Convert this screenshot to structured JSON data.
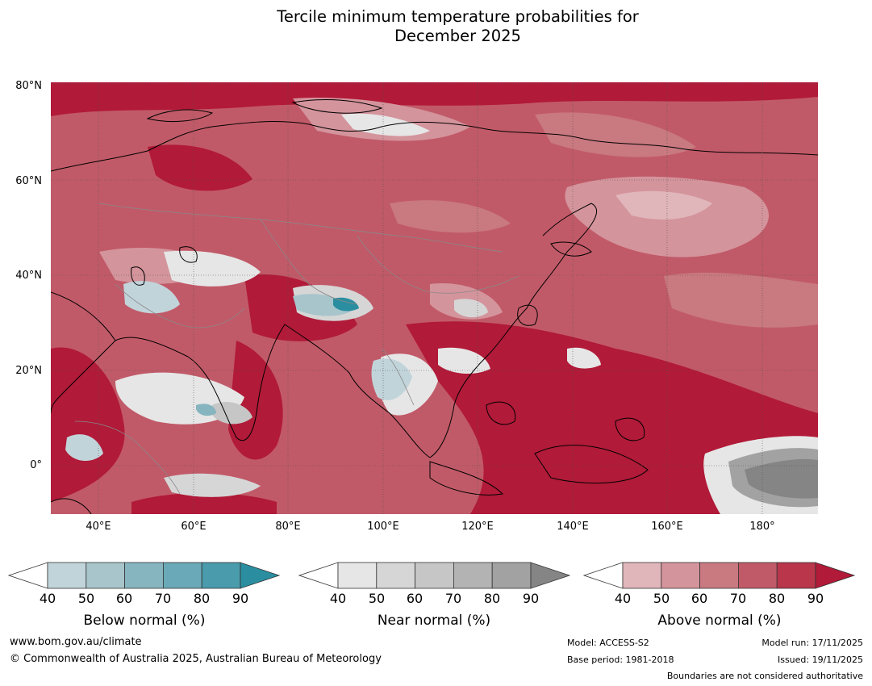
{
  "title": {
    "line1": "Tercile minimum temperature probabilities for",
    "line2": "December 2025"
  },
  "map": {
    "lat_labels": [
      "80°N",
      "60°N",
      "40°N",
      "20°N",
      "0°"
    ],
    "lon_labels": [
      "40°E",
      "60°E",
      "80°E",
      "100°E",
      "120°E",
      "140°E",
      "160°E",
      "180°"
    ]
  },
  "legends": {
    "below": {
      "title": "Below normal (%)",
      "ticks": [
        "40",
        "50",
        "60",
        "70",
        "80",
        "90"
      ],
      "colors": [
        "#c1d4da",
        "#a7c5cb",
        "#86b4bf",
        "#6aa9b7",
        "#4a9bab",
        "#2a8ea0"
      ]
    },
    "near": {
      "title": "Near normal (%)",
      "ticks": [
        "40",
        "50",
        "60",
        "70",
        "80",
        "90"
      ],
      "colors": [
        "#e6e6e6",
        "#d6d6d6",
        "#c6c6c6",
        "#b3b3b3",
        "#a2a2a2",
        "#858585"
      ]
    },
    "above": {
      "title": "Above normal (%)",
      "ticks": [
        "40",
        "50",
        "60",
        "70",
        "80",
        "90"
      ],
      "colors": [
        "#e0b6bb",
        "#d4949c",
        "#c97980",
        "#c15a68",
        "#b9364b",
        "#b11a38"
      ]
    }
  },
  "footer": {
    "website": "www.bom.gov.au/climate",
    "copyright": "© Commonwealth of Australia 2025, Australian Bureau of Meteorology",
    "model": "Model: ACCESS-S2",
    "base_period": "Base period: 1981-2018",
    "model_run": "Model run: 17/11/2025",
    "issued": "Issued: 19/11/2025",
    "disclaimer": "Boundaries are not considered authoritative"
  }
}
